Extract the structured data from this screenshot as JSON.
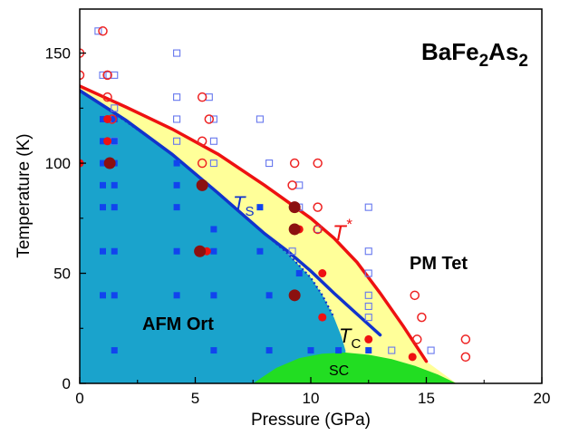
{
  "chart_data": {
    "type": "scatter",
    "title": "BaFe2As2",
    "title_parts": {
      "a": "BaFe",
      "b": "2",
      "c": "As",
      "d": "2"
    },
    "xlabel": "Pressure (GPa)",
    "ylabel": "Temperature (K)",
    "xlim": [
      0,
      20
    ],
    "ylim": [
      0,
      170
    ],
    "x_ticks": [
      0,
      5,
      10,
      15,
      20
    ],
    "y_ticks": [
      0,
      50,
      100,
      150
    ],
    "x_tick_labels": [
      "0",
      "5",
      "10",
      "15",
      "20"
    ],
    "y_tick_labels": [
      "0",
      "50",
      "100",
      "150"
    ],
    "grid": false,
    "colors": {
      "afm": "#1aa3cc",
      "pm": "#ffff99",
      "sc": "#22dd22",
      "tstar": "#ee1111",
      "ts": "#1133cc",
      "open_square": "#6677ee",
      "filled_square": "#1144ee",
      "open_circle": "#ee2222",
      "filled_circle": "#ee1111",
      "dark_circle": "#8b1010"
    },
    "region_labels": {
      "afm": "AFM Ort",
      "pm": "PM Tet",
      "sc": "SC"
    },
    "line_labels": {
      "tstar": {
        "t": "T",
        "sup": "*"
      },
      "ts": {
        "t": "T",
        "sub": "S"
      },
      "tc": {
        "t": "T",
        "sub": "C"
      }
    },
    "tstar_line": [
      [
        0,
        135
      ],
      [
        2,
        125.5
      ],
      [
        4,
        115.5
      ],
      [
        6,
        104
      ],
      [
        8,
        90
      ],
      [
        10,
        75
      ],
      [
        11,
        66
      ],
      [
        12,
        55
      ],
      [
        13,
        41
      ],
      [
        14,
        26
      ],
      [
        15,
        10
      ]
    ],
    "ts_line": [
      [
        0,
        133
      ],
      [
        2,
        119.5
      ],
      [
        4,
        104
      ],
      [
        6,
        86.3
      ],
      [
        8,
        68
      ],
      [
        9,
        60
      ],
      [
        10,
        51
      ],
      [
        11,
        41
      ],
      [
        12,
        31.5
      ],
      [
        13,
        22
      ]
    ],
    "afm_boundary": [
      [
        0,
        133
      ],
      [
        2,
        119
      ],
      [
        4,
        104
      ],
      [
        6,
        86
      ],
      [
        8,
        68
      ],
      [
        9,
        59
      ],
      [
        10,
        48
      ],
      [
        10.5,
        40
      ],
      [
        11,
        30
      ],
      [
        11.3,
        22
      ],
      [
        11.5,
        15
      ],
      [
        11.5,
        0
      ]
    ],
    "pm_boundary": [
      [
        0,
        135
      ],
      [
        2,
        125.5
      ],
      [
        4,
        115.5
      ],
      [
        6,
        104
      ],
      [
        8,
        90
      ],
      [
        10,
        75
      ],
      [
        11,
        66
      ],
      [
        12,
        55
      ],
      [
        13,
        41
      ],
      [
        14,
        26
      ],
      [
        15,
        10
      ],
      [
        16.3,
        0
      ]
    ],
    "sc_dome": [
      [
        7.5,
        0
      ],
      [
        8.5,
        7
      ],
      [
        9.5,
        11.5
      ],
      [
        10.5,
        13.5
      ],
      [
        11.5,
        14
      ],
      [
        12.5,
        13
      ],
      [
        13.5,
        11
      ],
      [
        14.5,
        8
      ],
      [
        15.5,
        4
      ],
      [
        16.3,
        0
      ]
    ],
    "series": [
      {
        "marker": "open_square",
        "points": [
          [
            0.8,
            160
          ],
          [
            1.0,
            140
          ],
          [
            1.2,
            140
          ],
          [
            1.5,
            140
          ],
          [
            1.3,
            120
          ],
          [
            1.5,
            125
          ],
          [
            1.5,
            110
          ],
          [
            4.2,
            150
          ],
          [
            4.2,
            130
          ],
          [
            4.2,
            120
          ],
          [
            4.2,
            110
          ],
          [
            5.6,
            130
          ],
          [
            5.8,
            120
          ],
          [
            5.8,
            110
          ],
          [
            5.8,
            100
          ],
          [
            7.8,
            120
          ],
          [
            8.2,
            100
          ],
          [
            9.5,
            90
          ],
          [
            9.5,
            80
          ],
          [
            10.3,
            70
          ],
          [
            9.2,
            60
          ],
          [
            12.5,
            80
          ],
          [
            12.5,
            60
          ],
          [
            12.5,
            50
          ],
          [
            12.5,
            40
          ],
          [
            12.5,
            35
          ],
          [
            12.5,
            30
          ],
          [
            13.5,
            15
          ],
          [
            15.2,
            15
          ]
        ]
      },
      {
        "marker": "filled_square",
        "points": [
          [
            1.0,
            120
          ],
          [
            1.5,
            120
          ],
          [
            1.0,
            110
          ],
          [
            1.5,
            110
          ],
          [
            1.0,
            100
          ],
          [
            1.5,
            100
          ],
          [
            1.0,
            90
          ],
          [
            1.5,
            90
          ],
          [
            1.0,
            80
          ],
          [
            1.5,
            80
          ],
          [
            1.0,
            60
          ],
          [
            1.5,
            60
          ],
          [
            1.0,
            40
          ],
          [
            1.5,
            40
          ],
          [
            1.5,
            15
          ],
          [
            4.2,
            100
          ],
          [
            4.2,
            90
          ],
          [
            4.2,
            80
          ],
          [
            4.2,
            60
          ],
          [
            4.2,
            40
          ],
          [
            5.8,
            70
          ],
          [
            5.8,
            60
          ],
          [
            5.8,
            40
          ],
          [
            5.8,
            15
          ],
          [
            7.8,
            80
          ],
          [
            7.8,
            60
          ],
          [
            8.2,
            40
          ],
          [
            8.2,
            15
          ],
          [
            9.5,
            50
          ],
          [
            10.5,
            30
          ],
          [
            10.0,
            15
          ],
          [
            11.2,
            15
          ],
          [
            12.5,
            15
          ]
        ]
      },
      {
        "marker": "open_circle",
        "points": [
          [
            0.0,
            150
          ],
          [
            0.0,
            140
          ],
          [
            1.0,
            160
          ],
          [
            1.2,
            140
          ],
          [
            1.2,
            130
          ],
          [
            1.4,
            120
          ],
          [
            5.3,
            130
          ],
          [
            5.3,
            110
          ],
          [
            5.6,
            120
          ],
          [
            5.3,
            100
          ],
          [
            9.3,
            100
          ],
          [
            9.2,
            90
          ],
          [
            10.3,
            100
          ],
          [
            10.3,
            80
          ],
          [
            10.3,
            70
          ],
          [
            14.5,
            40
          ],
          [
            14.8,
            30
          ],
          [
            14.6,
            20
          ],
          [
            16.7,
            20
          ],
          [
            16.7,
            12
          ]
        ]
      },
      {
        "marker": "filled_circle",
        "points": [
          [
            0.0,
            100
          ],
          [
            1.2,
            120
          ],
          [
            1.2,
            110
          ],
          [
            5.5,
            60
          ],
          [
            9.5,
            70
          ],
          [
            10.5,
            50
          ],
          [
            10.5,
            30
          ],
          [
            12.5,
            20
          ],
          [
            14.4,
            12
          ]
        ]
      },
      {
        "marker": "dark_circle",
        "points": [
          [
            1.3,
            100
          ],
          [
            5.3,
            90
          ],
          [
            5.2,
            60
          ],
          [
            9.3,
            80
          ],
          [
            9.3,
            70
          ],
          [
            9.3,
            40
          ]
        ]
      }
    ]
  }
}
